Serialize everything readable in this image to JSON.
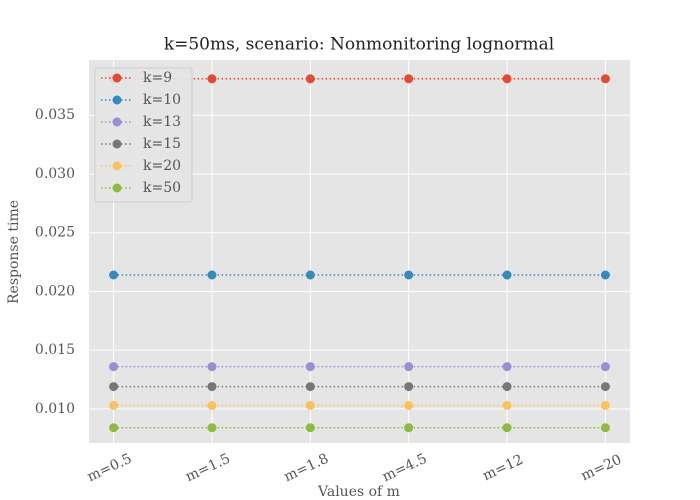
{
  "chart_data": {
    "type": "line",
    "title": "k=50ms, scenario: Nonmonitoring lognormal",
    "x_label": "Values of m",
    "y_label": "Response time",
    "categories": [
      "m=0.5",
      "m=1.5",
      "m=1.8",
      "m=4.5",
      "m=12",
      "m=20"
    ],
    "series": [
      {
        "name": "k=9",
        "color": "#E24A33",
        "values": [
          0.0381,
          0.0381,
          0.0381,
          0.0381,
          0.0381,
          0.0381
        ]
      },
      {
        "name": "k=10",
        "color": "#348ABD",
        "values": [
          0.0214,
          0.0214,
          0.0214,
          0.0214,
          0.0214,
          0.0214
        ]
      },
      {
        "name": "k=13",
        "color": "#988ED5",
        "values": [
          0.0136,
          0.0136,
          0.0136,
          0.0136,
          0.0136,
          0.0136
        ]
      },
      {
        "name": "k=15",
        "color": "#777777",
        "values": [
          0.0119,
          0.0119,
          0.0119,
          0.0119,
          0.0119,
          0.0119
        ]
      },
      {
        "name": "k=20",
        "color": "#FBC15E",
        "values": [
          0.0103,
          0.0103,
          0.0103,
          0.0103,
          0.0103,
          0.0103
        ]
      },
      {
        "name": "k=50",
        "color": "#8EBA42",
        "values": [
          0.0084,
          0.0084,
          0.0084,
          0.0084,
          0.0084,
          0.0084
        ]
      }
    ],
    "ylim": [
      0.0071,
      0.0397
    ],
    "yticks": [
      {
        "value": 0.01,
        "label": "0.010"
      },
      {
        "value": 0.015,
        "label": "0.015"
      },
      {
        "value": 0.02,
        "label": "0.020"
      },
      {
        "value": 0.025,
        "label": "0.025"
      },
      {
        "value": 0.03,
        "label": "0.030"
      },
      {
        "value": 0.035,
        "label": "0.035"
      }
    ],
    "grid": true,
    "legend_position": "upper-left"
  }
}
